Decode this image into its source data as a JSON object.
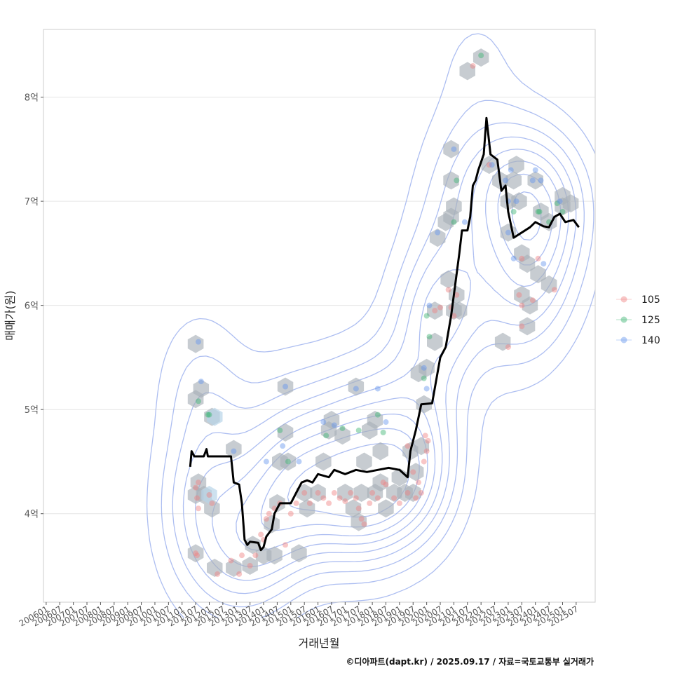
{
  "chart_data": {
    "type": "scatter",
    "title": "",
    "xlabel": "거래년월",
    "ylabel": "매매가(원)",
    "y_unit": "억",
    "ylim": [
      3.15,
      8.65
    ],
    "y_ticks": [
      {
        "value": 4,
        "label": "4억"
      },
      {
        "value": 5,
        "label": "5억"
      },
      {
        "value": 6,
        "label": "6억"
      },
      {
        "value": 7,
        "label": "7억"
      },
      {
        "value": 8,
        "label": "8억"
      }
    ],
    "xlim": [
      2005.9,
      2026.2
    ],
    "x_ticks": [
      {
        "value": 2006.0,
        "label": "200601"
      },
      {
        "value": 2006.5,
        "label": "200607"
      },
      {
        "value": 2007.0,
        "label": "200701"
      },
      {
        "value": 2007.5,
        "label": "200707"
      },
      {
        "value": 2008.0,
        "label": "200801"
      },
      {
        "value": 2008.5,
        "label": "200807"
      },
      {
        "value": 2009.0,
        "label": "200901"
      },
      {
        "value": 2009.5,
        "label": "200907"
      },
      {
        "value": 2010.0,
        "label": "201001"
      },
      {
        "value": 2010.5,
        "label": "201007"
      },
      {
        "value": 2011.0,
        "label": "201101"
      },
      {
        "value": 2011.5,
        "label": "201107"
      },
      {
        "value": 2012.0,
        "label": "201201"
      },
      {
        "value": 2012.5,
        "label": "201207"
      },
      {
        "value": 2013.0,
        "label": "201301"
      },
      {
        "value": 2013.5,
        "label": "201307"
      },
      {
        "value": 2014.0,
        "label": "201401"
      },
      {
        "value": 2014.5,
        "label": "201407"
      },
      {
        "value": 2015.0,
        "label": "201501"
      },
      {
        "value": 2015.5,
        "label": "201507"
      },
      {
        "value": 2016.0,
        "label": "201601"
      },
      {
        "value": 2016.5,
        "label": "201607"
      },
      {
        "value": 2017.0,
        "label": "201701"
      },
      {
        "value": 2017.5,
        "label": "201707"
      },
      {
        "value": 2018.0,
        "label": "201801"
      },
      {
        "value": 2018.5,
        "label": "201807"
      },
      {
        "value": 2019.0,
        "label": "201901"
      },
      {
        "value": 2019.5,
        "label": "201907"
      },
      {
        "value": 2020.0,
        "label": "202001"
      },
      {
        "value": 2020.5,
        "label": "202007"
      },
      {
        "value": 2021.0,
        "label": "202101"
      },
      {
        "value": 2021.5,
        "label": "202107"
      },
      {
        "value": 2022.0,
        "label": "202201"
      },
      {
        "value": 2022.5,
        "label": "202207"
      },
      {
        "value": 2023.0,
        "label": "202301"
      },
      {
        "value": 2023.5,
        "label": "202307"
      },
      {
        "value": 2024.0,
        "label": "202401"
      },
      {
        "value": 2024.5,
        "label": "202407"
      },
      {
        "value": 2025.0,
        "label": "202501"
      },
      {
        "value": 2025.5,
        "label": "202507"
      }
    ],
    "legend": {
      "position": "right",
      "entries": [
        {
          "name": "105",
          "color": "#f08080"
        },
        {
          "name": "125",
          "color": "#3cb371"
        },
        {
          "name": "140",
          "color": "#6495ed"
        }
      ]
    },
    "colors": {
      "line": "#000000",
      "hex": "#a9b0b8",
      "hex_light": "#b8d4e8",
      "contour": "#9fb3ee",
      "grid": "#e6e6e6"
    },
    "series": [
      {
        "name": "105",
        "points": [
          [
            2011.5,
            4.25
          ],
          [
            2011.6,
            4.3
          ],
          [
            2011.55,
            4.15
          ],
          [
            2011.6,
            4.05
          ],
          [
            2011.5,
            3.62
          ],
          [
            2011.55,
            3.6
          ],
          [
            2012.0,
            4.18
          ],
          [
            2012.1,
            4.1
          ],
          [
            2012.3,
            3.42
          ],
          [
            2012.8,
            3.55
          ],
          [
            2013.1,
            3.42
          ],
          [
            2013.2,
            3.6
          ],
          [
            2013.5,
            3.5
          ],
          [
            2013.7,
            3.6
          ],
          [
            2013.9,
            3.8
          ],
          [
            2014.0,
            3.75
          ],
          [
            2014.1,
            3.95
          ],
          [
            2014.2,
            4.0
          ],
          [
            2014.4,
            4.05
          ],
          [
            2014.6,
            4.1
          ],
          [
            2014.8,
            3.7
          ],
          [
            2015.0,
            4.0
          ],
          [
            2015.2,
            4.1
          ],
          [
            2015.5,
            4.2
          ],
          [
            2015.7,
            4.1
          ],
          [
            2016.0,
            4.2
          ],
          [
            2016.2,
            4.15
          ],
          [
            2016.4,
            4.1
          ],
          [
            2016.6,
            4.2
          ],
          [
            2016.8,
            4.15
          ],
          [
            2017.0,
            4.12
          ],
          [
            2017.2,
            4.2
          ],
          [
            2017.4,
            4.15
          ],
          [
            2017.5,
            4.05
          ],
          [
            2017.6,
            3.95
          ],
          [
            2017.7,
            3.9
          ],
          [
            2017.9,
            4.1
          ],
          [
            2018.0,
            4.2
          ],
          [
            2018.2,
            4.15
          ],
          [
            2018.4,
            4.3
          ],
          [
            2018.5,
            4.28
          ],
          [
            2018.8,
            4.15
          ],
          [
            2019.0,
            4.1
          ],
          [
            2019.3,
            4.2
          ],
          [
            2019.5,
            4.4
          ],
          [
            2019.7,
            4.3
          ],
          [
            2019.9,
            4.5
          ],
          [
            2020.0,
            4.6
          ],
          [
            2020.05,
            4.7
          ],
          [
            2019.95,
            4.75
          ],
          [
            2019.8,
            4.2
          ],
          [
            2019.6,
            4.15
          ],
          [
            2019.3,
            4.65
          ],
          [
            2020.3,
            5.95
          ],
          [
            2020.5,
            5.98
          ],
          [
            2020.8,
            6.15
          ],
          [
            2020.9,
            5.98
          ],
          [
            2021.0,
            5.9
          ],
          [
            2021.1,
            6.1
          ],
          [
            2021.7,
            8.3
          ],
          [
            2022.3,
            7.35
          ],
          [
            2023.0,
            5.6
          ],
          [
            2023.4,
            6.1
          ],
          [
            2023.5,
            6.0
          ],
          [
            2023.5,
            5.8
          ],
          [
            2023.9,
            6.05
          ],
          [
            2024.1,
            6.45
          ],
          [
            2024.7,
            6.15
          ],
          [
            2023.5,
            6.45
          ]
        ]
      },
      {
        "name": "125",
        "points": [
          [
            2011.6,
            5.08
          ],
          [
            2011.95,
            4.95
          ],
          [
            2012.0,
            4.95
          ],
          [
            2014.6,
            4.8
          ],
          [
            2014.9,
            4.5
          ],
          [
            2016.3,
            4.75
          ],
          [
            2016.9,
            4.82
          ],
          [
            2017.5,
            4.8
          ],
          [
            2018.2,
            4.95
          ],
          [
            2018.4,
            4.78
          ],
          [
            2019.9,
            5.3
          ],
          [
            2020.0,
            5.9
          ],
          [
            2020.1,
            5.7
          ],
          [
            2021.0,
            6.8
          ],
          [
            2021.1,
            7.2
          ],
          [
            2022.0,
            8.4
          ],
          [
            2023.2,
            6.9
          ],
          [
            2024.1,
            6.9
          ],
          [
            2024.15,
            6.9
          ],
          [
            2024.8,
            6.98
          ],
          [
            2025.0,
            6.9
          ],
          [
            2024.5,
            6.8
          ]
        ]
      },
      {
        "name": "140",
        "points": [
          [
            2011.6,
            5.65
          ],
          [
            2011.7,
            5.27
          ],
          [
            2012.9,
            4.6
          ],
          [
            2014.1,
            4.5
          ],
          [
            2014.8,
            5.22
          ],
          [
            2014.7,
            4.65
          ],
          [
            2015.3,
            4.5
          ],
          [
            2016.2,
            4.88
          ],
          [
            2016.6,
            4.85
          ],
          [
            2017.4,
            5.2
          ],
          [
            2018.2,
            5.2
          ],
          [
            2018.5,
            4.88
          ],
          [
            2019.9,
            5.4
          ],
          [
            2020.0,
            5.2
          ],
          [
            2020.1,
            6.0
          ],
          [
            2020.4,
            6.7
          ],
          [
            2021.0,
            7.5
          ],
          [
            2021.4,
            6.8
          ],
          [
            2022.4,
            7.35
          ],
          [
            2022.9,
            7.2
          ],
          [
            2023.1,
            7.3
          ],
          [
            2023.0,
            7.0
          ],
          [
            2023.3,
            7.0
          ],
          [
            2023.0,
            6.7
          ],
          [
            2023.9,
            7.2
          ],
          [
            2024.0,
            7.3
          ],
          [
            2024.2,
            7.2
          ],
          [
            2024.3,
            6.4
          ],
          [
            2024.9,
            7.0
          ],
          [
            2023.2,
            6.45
          ]
        ]
      }
    ],
    "median_line": [
      [
        2011.3,
        4.45
      ],
      [
        2011.35,
        4.6
      ],
      [
        2011.45,
        4.55
      ],
      [
        2011.8,
        4.55
      ],
      [
        2011.9,
        4.62
      ],
      [
        2011.95,
        4.55
      ],
      [
        2012.8,
        4.55
      ],
      [
        2012.9,
        4.3
      ],
      [
        2013.1,
        4.28
      ],
      [
        2013.2,
        4.1
      ],
      [
        2013.3,
        3.75
      ],
      [
        2013.4,
        3.7
      ],
      [
        2013.5,
        3.73
      ],
      [
        2013.8,
        3.72
      ],
      [
        2013.9,
        3.65
      ],
      [
        2014.0,
        3.68
      ],
      [
        2014.1,
        3.78
      ],
      [
        2014.3,
        3.85
      ],
      [
        2014.4,
        4.0
      ],
      [
        2014.6,
        4.1
      ],
      [
        2015.0,
        4.1
      ],
      [
        2015.2,
        4.2
      ],
      [
        2015.4,
        4.3
      ],
      [
        2015.6,
        4.32
      ],
      [
        2015.8,
        4.3
      ],
      [
        2016.0,
        4.38
      ],
      [
        2016.4,
        4.35
      ],
      [
        2016.6,
        4.42
      ],
      [
        2017.0,
        4.38
      ],
      [
        2017.4,
        4.42
      ],
      [
        2017.8,
        4.4
      ],
      [
        2018.2,
        4.42
      ],
      [
        2018.6,
        4.44
      ],
      [
        2019.0,
        4.42
      ],
      [
        2019.3,
        4.35
      ],
      [
        2019.4,
        4.6
      ],
      [
        2019.6,
        4.8
      ],
      [
        2019.8,
        5.05
      ],
      [
        2020.2,
        5.06
      ],
      [
        2020.5,
        5.5
      ],
      [
        2020.7,
        5.6
      ],
      [
        2020.9,
        5.9
      ],
      [
        2021.2,
        6.5
      ],
      [
        2021.3,
        6.72
      ],
      [
        2021.5,
        6.72
      ],
      [
        2021.6,
        6.85
      ],
      [
        2021.7,
        7.15
      ],
      [
        2021.8,
        7.2
      ],
      [
        2021.9,
        7.3
      ],
      [
        2022.1,
        7.45
      ],
      [
        2022.2,
        7.8
      ],
      [
        2022.35,
        7.45
      ],
      [
        2022.6,
        7.4
      ],
      [
        2022.75,
        7.1
      ],
      [
        2022.9,
        7.15
      ],
      [
        2023.0,
        6.9
      ],
      [
        2023.2,
        6.65
      ],
      [
        2023.5,
        6.7
      ],
      [
        2023.8,
        6.75
      ],
      [
        2024.0,
        6.8
      ],
      [
        2024.3,
        6.76
      ],
      [
        2024.5,
        6.75
      ],
      [
        2024.7,
        6.85
      ],
      [
        2024.9,
        6.88
      ],
      [
        2025.1,
        6.8
      ],
      [
        2025.4,
        6.82
      ],
      [
        2025.6,
        6.75
      ]
    ],
    "hexbins": [
      [
        2011.5,
        5.63
      ],
      [
        2011.5,
        5.1
      ],
      [
        2011.7,
        5.2
      ],
      [
        2011.6,
        4.3
      ],
      [
        2011.5,
        4.18
      ],
      [
        2011.8,
        4.18
      ],
      [
        2012.1,
        4.05
      ],
      [
        2011.5,
        3.62
      ],
      [
        2012.1,
        4.93
      ],
      [
        2012.9,
        4.62
      ],
      [
        2012.2,
        3.48
      ],
      [
        2012.9,
        3.48
      ],
      [
        2013.5,
        3.5
      ],
      [
        2013.6,
        3.7
      ],
      [
        2014.0,
        3.6
      ],
      [
        2014.4,
        3.6
      ],
      [
        2014.5,
        4.1
      ],
      [
        2014.3,
        3.9
      ],
      [
        2014.6,
        4.5
      ],
      [
        2014.8,
        4.78
      ],
      [
        2014.9,
        4.5
      ],
      [
        2014.8,
        5.22
      ],
      [
        2015.5,
        4.2
      ],
      [
        2015.6,
        4.05
      ],
      [
        2015.3,
        3.62
      ],
      [
        2016.0,
        4.2
      ],
      [
        2016.2,
        4.5
      ],
      [
        2016.4,
        4.8
      ],
      [
        2016.5,
        4.9
      ],
      [
        2016.9,
        4.75
      ],
      [
        2017.0,
        4.2
      ],
      [
        2017.3,
        4.05
      ],
      [
        2017.5,
        3.92
      ],
      [
        2017.6,
        4.2
      ],
      [
        2017.7,
        4.5
      ],
      [
        2017.4,
        5.22
      ],
      [
        2017.9,
        4.8
      ],
      [
        2018.1,
        4.9
      ],
      [
        2018.3,
        4.6
      ],
      [
        2018.3,
        4.3
      ],
      [
        2018.1,
        4.2
      ],
      [
        2018.5,
        4.05
      ],
      [
        2018.8,
        4.2
      ],
      [
        2019.0,
        4.35
      ],
      [
        2019.2,
        4.2
      ],
      [
        2019.4,
        4.6
      ],
      [
        2019.5,
        4.2
      ],
      [
        2019.6,
        4.4
      ],
      [
        2019.8,
        4.65
      ],
      [
        2019.7,
        5.35
      ],
      [
        2019.9,
        5.05
      ],
      [
        2020.0,
        5.4
      ],
      [
        2020.3,
        5.65
      ],
      [
        2020.3,
        5.95
      ],
      [
        2020.4,
        6.65
      ],
      [
        2020.7,
        6.8
      ],
      [
        2020.8,
        6.25
      ],
      [
        2021.0,
        5.95
      ],
      [
        2021.1,
        6.1
      ],
      [
        2021.2,
        5.95
      ],
      [
        2020.9,
        6.85
      ],
      [
        2021.0,
        6.95
      ],
      [
        2020.9,
        7.2
      ],
      [
        2020.9,
        7.5
      ],
      [
        2021.5,
        8.25
      ],
      [
        2022.0,
        8.38
      ],
      [
        2022.3,
        7.35
      ],
      [
        2022.7,
        7.2
      ],
      [
        2023.0,
        7.0
      ],
      [
        2023.0,
        6.7
      ],
      [
        2023.2,
        7.2
      ],
      [
        2023.4,
        7.0
      ],
      [
        2023.3,
        7.35
      ],
      [
        2023.5,
        6.5
      ],
      [
        2023.7,
        6.4
      ],
      [
        2023.5,
        6.1
      ],
      [
        2023.8,
        6.0
      ],
      [
        2023.7,
        5.8
      ],
      [
        2024.1,
        6.3
      ],
      [
        2024.0,
        7.2
      ],
      [
        2024.2,
        6.9
      ],
      [
        2024.5,
        6.2
      ],
      [
        2024.5,
        6.8
      ],
      [
        2025.0,
        6.95
      ],
      [
        2025.3,
        6.98
      ],
      [
        2025.0,
        7.05
      ],
      [
        2022.8,
        5.65
      ]
    ],
    "hexbins_light": [
      [
        2012.2,
        4.93
      ],
      [
        2012.0,
        4.18
      ]
    ],
    "contour_level_count": 9
  },
  "caption": "©디아파트(dapt.kr) / 2025.09.17 / 자료=국토교통부 실거래가"
}
